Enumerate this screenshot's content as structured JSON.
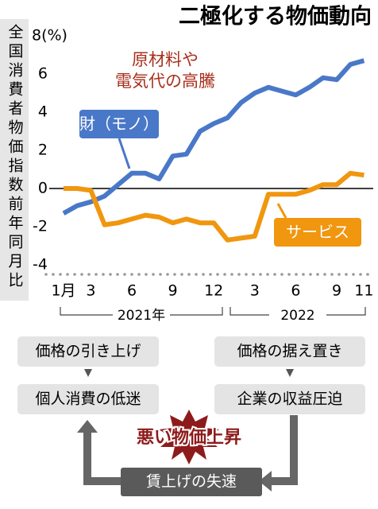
{
  "chart_data": {
    "type": "line",
    "title": "二極化する物価動向",
    "y_label": "全国消費者物価指数前年同月比",
    "annotation": [
      "原材料や",
      "電気代の高騰"
    ],
    "categories": [
      "1月",
      null,
      "3",
      null,
      null,
      "6",
      null,
      null,
      "9",
      null,
      null,
      "12",
      null,
      null,
      "3",
      null,
      null,
      "6",
      null,
      null,
      "9",
      null,
      "11"
    ],
    "year_labels": [
      "2021年",
      "2022"
    ],
    "series": [
      {
        "name": "財（モノ）",
        "color": "#4a78c8",
        "values": [
          -1.3,
          -0.9,
          -0.7,
          -0.4,
          0.2,
          0.8,
          0.8,
          0.5,
          1.7,
          1.8,
          3.0,
          3.4,
          3.7,
          4.5,
          5.0,
          5.3,
          5.1,
          4.9,
          5.3,
          5.8,
          5.7,
          6.5,
          6.7
        ]
      },
      {
        "name": "サービス",
        "color": "#f0960f",
        "values": [
          0.0,
          0.0,
          -0.1,
          -1.9,
          -1.8,
          -1.6,
          -1.4,
          -1.5,
          -1.8,
          -1.6,
          -1.8,
          -1.8,
          -2.7,
          -2.6,
          -2.5,
          -0.3,
          -0.3,
          -0.3,
          -0.1,
          0.2,
          0.2,
          0.8,
          0.7
        ]
      }
    ],
    "ylim": [
      -4.5,
      8
    ],
    "yticks": [
      -4,
      -2,
      0,
      2,
      4,
      6,
      {
        "value": 8,
        "label": "8(%)"
      }
    ]
  },
  "diagram": {
    "left": [
      "価格の引き上げ",
      "個人消費の低迷"
    ],
    "right": [
      "価格の据え置き",
      "企業の収益圧迫"
    ],
    "center": "悪い物価上昇",
    "bottom": "賃上げの失速"
  }
}
